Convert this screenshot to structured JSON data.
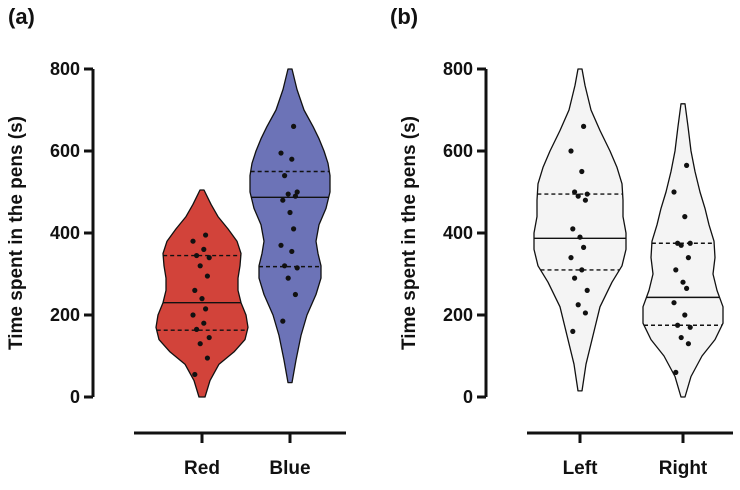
{
  "chart_data": [
    {
      "panel": "(a)",
      "type": "violin",
      "ylabel": "Time spent in the pens (s)",
      "ylim": [
        0,
        800
      ],
      "yticks": [
        0,
        200,
        400,
        600,
        800
      ],
      "categories": [
        "Red",
        "Blue"
      ],
      "groups": [
        {
          "name": "Red",
          "color": "#d2433a",
          "range": [
            0,
            505
          ],
          "median": 230,
          "q1": 163,
          "q3": 345,
          "profile": [
            [
              0,
              3
            ],
            [
              40,
              8
            ],
            [
              80,
              17
            ],
            [
              110,
              32
            ],
            [
              140,
              43
            ],
            [
              170,
              46
            ],
            [
              200,
              44
            ],
            [
              230,
              39
            ],
            [
              260,
              36
            ],
            [
              290,
              36
            ],
            [
              320,
              38
            ],
            [
              350,
              39
            ],
            [
              380,
              35
            ],
            [
              410,
              26
            ],
            [
              440,
              16
            ],
            [
              470,
              9
            ],
            [
              505,
              2
            ]
          ],
          "points": [
            55,
            95,
            130,
            145,
            165,
            180,
            200,
            215,
            240,
            260,
            295,
            320,
            340,
            345,
            360,
            380,
            395
          ]
        },
        {
          "name": "Blue",
          "color": "#6c73b7",
          "range": [
            35,
            800
          ],
          "median": 487,
          "q1": 318,
          "q3": 550,
          "profile": [
            [
              35,
              2
            ],
            [
              90,
              6
            ],
            [
              150,
              11
            ],
            [
              200,
              17
            ],
            [
              250,
              26
            ],
            [
              290,
              31
            ],
            [
              320,
              31
            ],
            [
              350,
              28
            ],
            [
              380,
              26
            ],
            [
              420,
              29
            ],
            [
              460,
              36
            ],
            [
              500,
              40
            ],
            [
              540,
              40
            ],
            [
              570,
              38
            ],
            [
              600,
              34
            ],
            [
              630,
              29
            ],
            [
              660,
              23
            ],
            [
              700,
              14
            ],
            [
              750,
              7
            ],
            [
              800,
              2
            ]
          ],
          "points": [
            185,
            250,
            290,
            315,
            320,
            355,
            370,
            410,
            450,
            480,
            490,
            495,
            500,
            540,
            580,
            595,
            660
          ]
        }
      ]
    },
    {
      "panel": "(b)",
      "type": "violin",
      "ylabel": "Time spent in the pens (s)",
      "ylim": [
        0,
        800
      ],
      "yticks": [
        0,
        200,
        400,
        600,
        800
      ],
      "categories": [
        "Left",
        "Right"
      ],
      "groups": [
        {
          "name": "Left",
          "color": "#f4f4f4",
          "range": [
            15,
            800
          ],
          "median": 387,
          "q1": 310,
          "q3": 495,
          "profile": [
            [
              15,
              2
            ],
            [
              80,
              6
            ],
            [
              150,
              13
            ],
            [
              220,
              20
            ],
            [
              280,
              32
            ],
            [
              320,
              42
            ],
            [
              360,
              46
            ],
            [
              400,
              46
            ],
            [
              440,
              43
            ],
            [
              480,
              43
            ],
            [
              520,
              42
            ],
            [
              560,
              37
            ],
            [
              600,
              30
            ],
            [
              650,
              20
            ],
            [
              700,
              11
            ],
            [
              760,
              5
            ],
            [
              800,
              2
            ]
          ],
          "points": [
            160,
            205,
            225,
            260,
            290,
            310,
            340,
            365,
            390,
            410,
            480,
            490,
            495,
            500,
            550,
            600,
            660
          ]
        },
        {
          "name": "Right",
          "color": "#f4f4f4",
          "range": [
            0,
            715
          ],
          "median": 243,
          "q1": 175,
          "q3": 375,
          "profile": [
            [
              0,
              2
            ],
            [
              50,
              8
            ],
            [
              100,
              19
            ],
            [
              140,
              32
            ],
            [
              180,
              40
            ],
            [
              220,
              40
            ],
            [
              260,
              34
            ],
            [
              300,
              30
            ],
            [
              340,
              32
            ],
            [
              380,
              31
            ],
            [
              420,
              26
            ],
            [
              460,
              22
            ],
            [
              500,
              17
            ],
            [
              550,
              12
            ],
            [
              600,
              8
            ],
            [
              660,
              5
            ],
            [
              715,
              2
            ]
          ],
          "points": [
            60,
            130,
            145,
            170,
            175,
            200,
            230,
            265,
            280,
            310,
            340,
            370,
            375,
            375,
            440,
            500,
            565
          ]
        }
      ]
    }
  ]
}
